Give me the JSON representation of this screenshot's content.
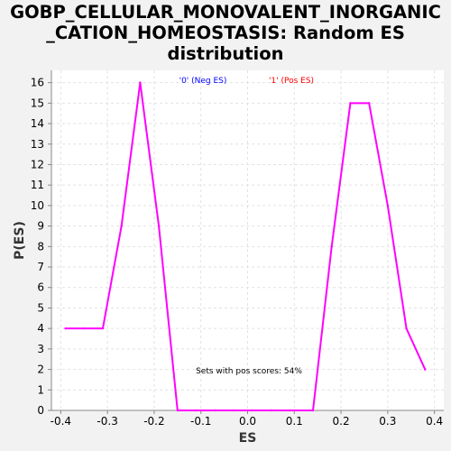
{
  "chart_data": {
    "type": "line",
    "title_lines": [
      "GOBP_CELLULAR_MONOVALENT_INORGANIC",
      "_CATION_HOMEOSTASIS: Random ES",
      "distribution"
    ],
    "xlabel": "ES",
    "ylabel": "P(ES)",
    "xlim": [
      -0.42,
      0.42
    ],
    "ylim": [
      0,
      16.6
    ],
    "x_ticks": [
      "-0.4",
      "-0.3",
      "-0.2",
      "-0.1",
      "0.0",
      "0.1",
      "0.2",
      "0.3",
      "0.4"
    ],
    "y_ticks": [
      "0",
      "1",
      "2",
      "3",
      "4",
      "5",
      "6",
      "7",
      "8",
      "9",
      "10",
      "11",
      "12",
      "13",
      "14",
      "15",
      "16"
    ],
    "grid": true,
    "legend": [
      {
        "label": "'0' (Neg ES)",
        "color": "#0000ff"
      },
      {
        "label": "'1' (Pos ES)",
        "color": "#ff0000"
      }
    ],
    "annotation": "Sets with pos scores: 54%",
    "line_color": "#ff00ff",
    "series": [
      {
        "x": [
          -0.39,
          -0.35,
          -0.31,
          -0.27,
          -0.23,
          -0.19,
          -0.15,
          -0.11,
          -0.07,
          -0.03,
          0.01,
          0.05,
          0.09,
          0.14,
          0.18,
          0.22,
          0.26,
          0.3,
          0.34,
          0.38
        ],
        "y": [
          4,
          4,
          4,
          9,
          16,
          9,
          0,
          0,
          0,
          0,
          0,
          0,
          0,
          0,
          8,
          15,
          15,
          10,
          4,
          2
        ]
      }
    ]
  }
}
